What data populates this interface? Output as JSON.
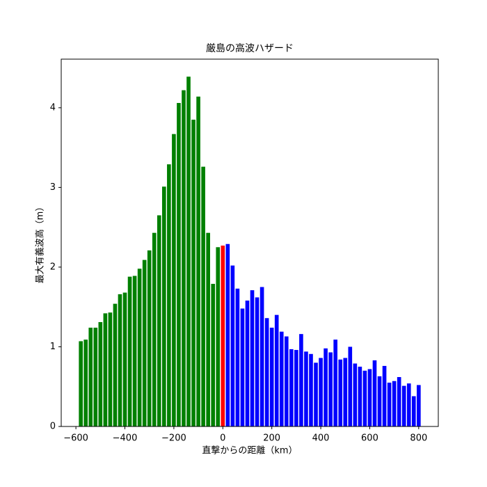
{
  "chart_data": {
    "type": "bar",
    "title": "厳島の高波ハザード",
    "x_label": "直撃からの距離（km）",
    "y_label": "最大有義波高（m）",
    "x": [
      -580,
      -560,
      -540,
      -520,
      -500,
      -480,
      -460,
      -440,
      -420,
      -400,
      -380,
      -360,
      -340,
      -320,
      -300,
      -280,
      -260,
      -240,
      -220,
      -200,
      -180,
      -160,
      -140,
      -120,
      -100,
      -80,
      -60,
      -40,
      -20,
      0,
      20,
      40,
      60,
      80,
      100,
      120,
      140,
      160,
      180,
      200,
      220,
      240,
      260,
      280,
      300,
      320,
      340,
      360,
      380,
      400,
      420,
      440,
      460,
      480,
      500,
      520,
      540,
      560,
      580,
      600,
      620,
      640,
      660,
      680,
      700,
      720,
      740,
      760,
      780,
      800
    ],
    "values": [
      1.07,
      1.09,
      1.24,
      1.24,
      1.31,
      1.42,
      1.43,
      1.54,
      1.66,
      1.68,
      1.88,
      1.89,
      1.98,
      2.09,
      2.21,
      2.43,
      2.65,
      3.01,
      3.29,
      3.67,
      4.06,
      4.22,
      4.39,
      3.85,
      4.14,
      3.26,
      2.43,
      1.79,
      2.25,
      2.27,
      2.29,
      2.02,
      1.73,
      1.48,
      1.58,
      1.71,
      1.62,
      1.75,
      1.36,
      1.24,
      1.4,
      1.19,
      1.13,
      0.97,
      0.96,
      1.16,
      0.94,
      0.91,
      0.8,
      0.86,
      0.98,
      0.93,
      1.09,
      0.84,
      0.86,
      1.0,
      0.79,
      0.75,
      0.7,
      0.72,
      0.83,
      0.63,
      0.76,
      0.55,
      0.57,
      0.62,
      0.51,
      0.54,
      0.38,
      0.52
    ],
    "colors": [
      "green",
      "green",
      "green",
      "green",
      "green",
      "green",
      "green",
      "green",
      "green",
      "green",
      "green",
      "green",
      "green",
      "green",
      "green",
      "green",
      "green",
      "green",
      "green",
      "green",
      "green",
      "green",
      "green",
      "green",
      "green",
      "green",
      "green",
      "green",
      "green",
      "red",
      "blue",
      "blue",
      "blue",
      "blue",
      "blue",
      "blue",
      "blue",
      "blue",
      "blue",
      "blue",
      "blue",
      "blue",
      "blue",
      "blue",
      "blue",
      "blue",
      "blue",
      "blue",
      "blue",
      "blue",
      "blue",
      "blue",
      "blue",
      "blue",
      "blue",
      "blue",
      "blue",
      "blue",
      "blue",
      "blue",
      "blue",
      "blue",
      "blue",
      "blue",
      "blue",
      "blue",
      "blue",
      "blue",
      "blue",
      "blue"
    ],
    "xlim": [
      -660,
      880
    ],
    "ylim": [
      0,
      4.61
    ],
    "xticks": [
      {
        "value": -600,
        "label": "−600"
      },
      {
        "value": -400,
        "label": "−400"
      },
      {
        "value": -200,
        "label": "−200"
      },
      0,
      200,
      400,
      600,
      800
    ],
    "yticks": [
      0,
      1,
      2,
      3,
      4
    ]
  }
}
